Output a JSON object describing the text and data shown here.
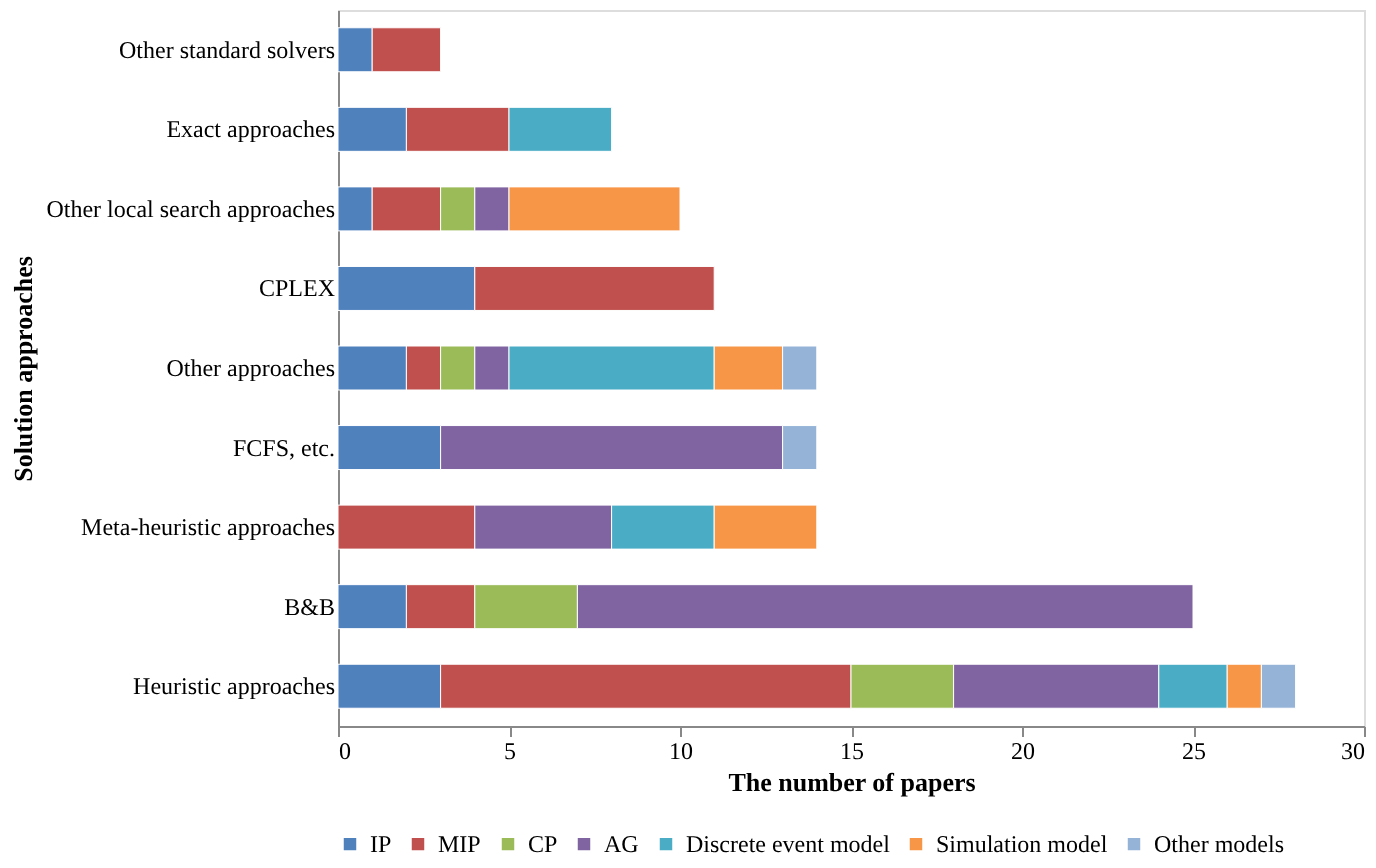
{
  "chart_data": {
    "type": "bar",
    "orientation": "horizontal",
    "stacked": true,
    "xlabel": "The number of papers",
    "ylabel": "Solution approaches",
    "categories": [
      "Other standard solvers",
      "Exact approaches",
      "Other local search approaches",
      "CPLEX",
      "Other approaches",
      "FCFS, etc.",
      "Meta-heuristic approaches",
      "B&B",
      "Heuristic approaches"
    ],
    "series": [
      {
        "name": "IP",
        "color": "#4f81bd",
        "values": [
          1,
          2,
          1,
          4,
          2,
          3,
          null,
          2,
          3
        ]
      },
      {
        "name": "MIP",
        "color": "#c0504d",
        "values": [
          2,
          3,
          2,
          7,
          1,
          null,
          4,
          2,
          12
        ]
      },
      {
        "name": "CP",
        "color": "#9bbb59",
        "values": [
          null,
          null,
          1,
          null,
          1,
          null,
          null,
          3,
          3
        ]
      },
      {
        "name": "AG",
        "color": "#8064a2",
        "values": [
          null,
          null,
          1,
          null,
          1,
          10,
          4,
          18,
          6
        ]
      },
      {
        "name": "Discrete event model",
        "color": "#4bacc6",
        "values": [
          null,
          3,
          null,
          null,
          6,
          null,
          3,
          null,
          2
        ]
      },
      {
        "name": "Simulation model",
        "color": "#f79646",
        "values": [
          null,
          null,
          5,
          null,
          2,
          null,
          3,
          null,
          1
        ]
      },
      {
        "name": "Other models",
        "color": "#95b3d7",
        "values": [
          null,
          null,
          null,
          null,
          1,
          1,
          null,
          null,
          1
        ]
      }
    ],
    "xlim": [
      0,
      30
    ],
    "xticks": [
      0,
      5,
      10,
      15,
      20,
      25,
      30
    ],
    "grid": false,
    "legend": "bottom"
  }
}
